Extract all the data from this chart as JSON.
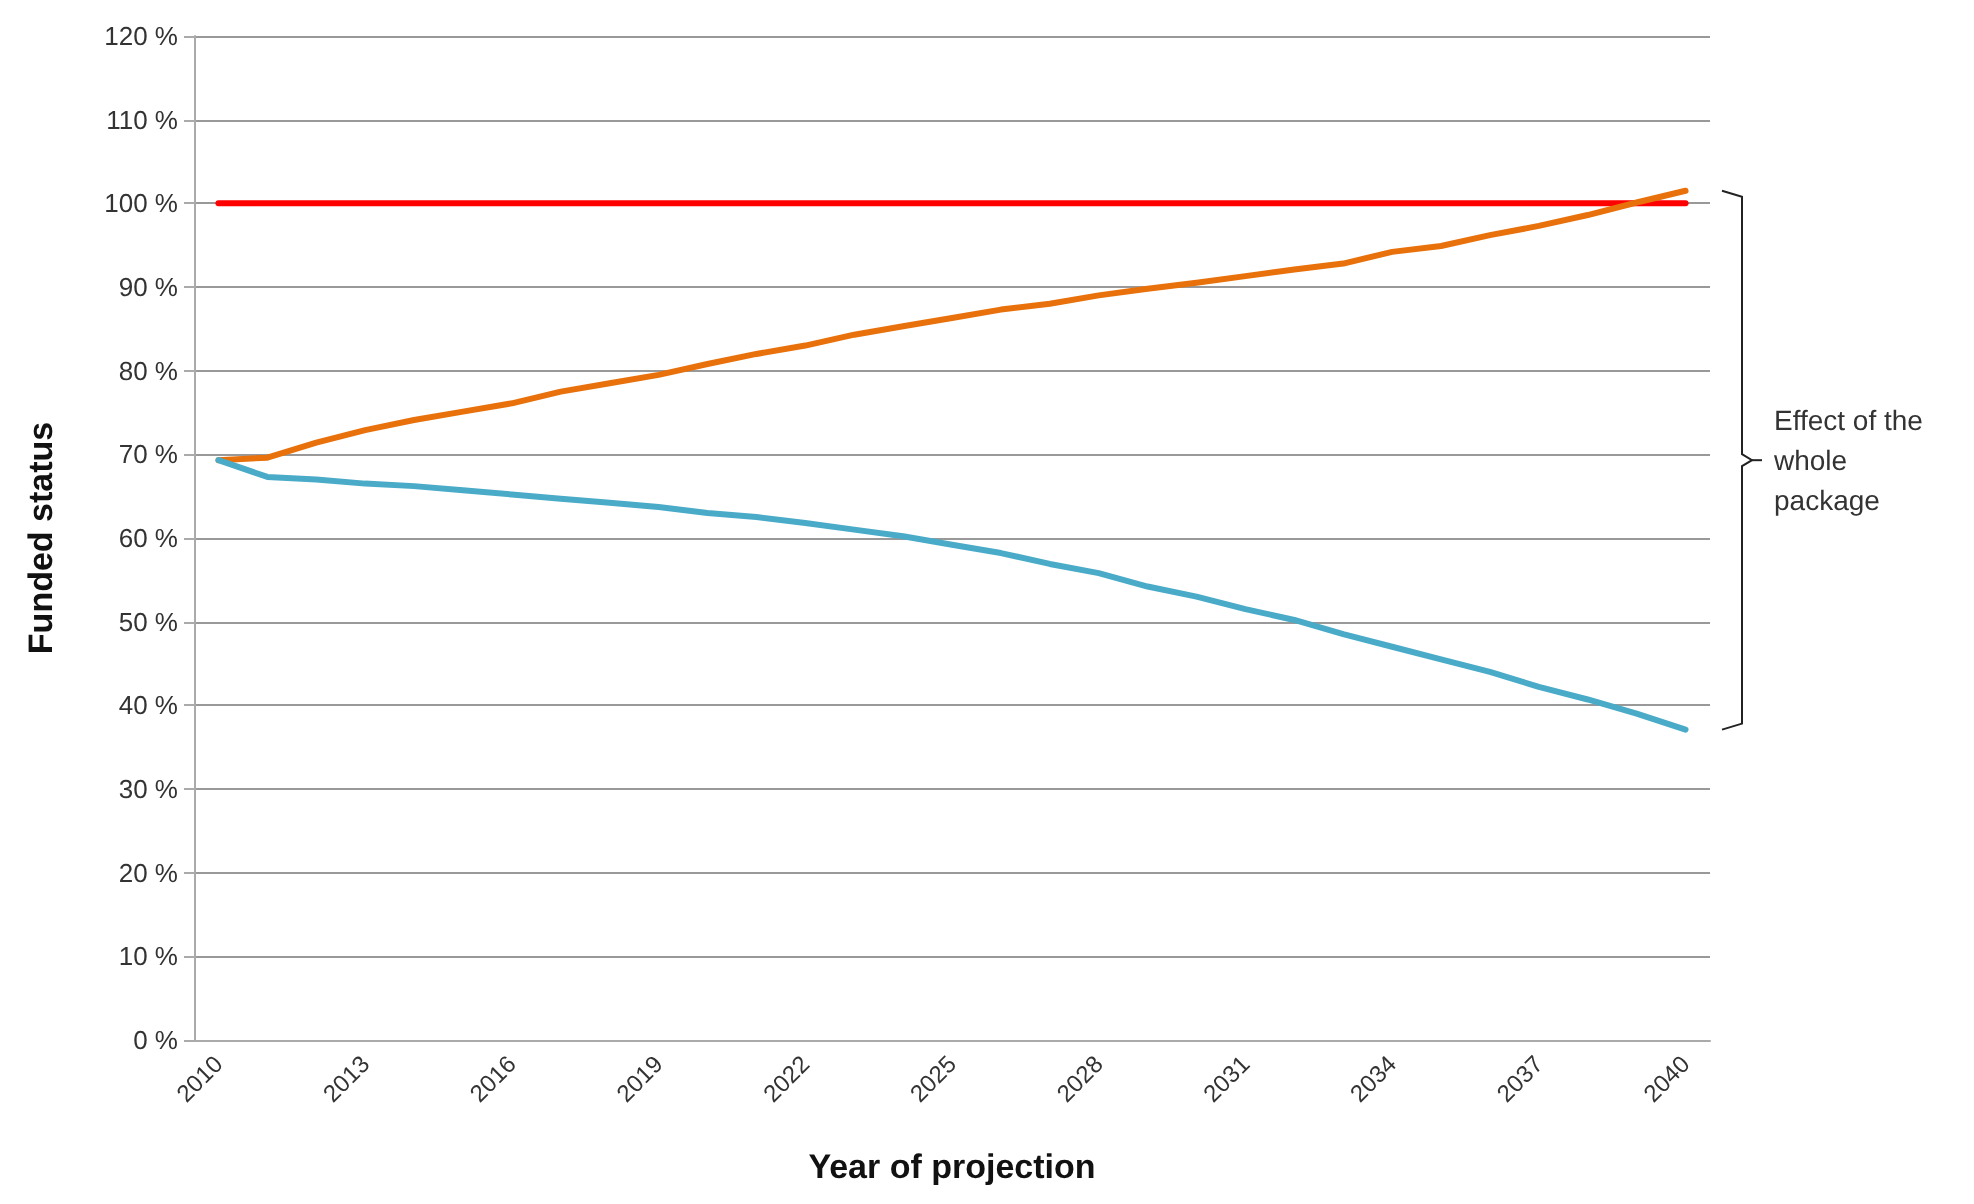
{
  "chart_data": {
    "type": "line",
    "xlabel": "Year of projection",
    "ylabel": "Funded status",
    "categories": [
      "2010",
      null,
      null,
      "2013",
      null,
      null,
      "2016",
      null,
      null,
      "2019",
      null,
      null,
      "2022",
      null,
      null,
      "2025",
      null,
      null,
      "2028",
      null,
      null,
      "2031",
      null,
      null,
      "2034",
      null,
      null,
      "2037",
      null,
      null,
      "2040"
    ],
    "series": [
      {
        "color": "#ff0000",
        "values": [
          100,
          100,
          100,
          100,
          100,
          100,
          100,
          100,
          100,
          100,
          100,
          100,
          100,
          100,
          100,
          100,
          100,
          100,
          100,
          100,
          100,
          100,
          100,
          100,
          100,
          100,
          100,
          100,
          100,
          100,
          100
        ]
      },
      {
        "color": "#e8710c",
        "values": [
          69.3,
          69.6,
          71.4,
          72.9,
          74.1,
          75.1,
          76.1,
          77.5,
          78.5,
          79.5,
          80.8,
          82.0,
          83.0,
          84.3,
          85.3,
          86.3,
          87.3,
          88.0,
          89.0,
          89.8,
          90.5,
          91.3,
          92.1,
          92.8,
          94.2,
          94.9,
          96.2,
          97.3,
          98.6,
          100.1,
          101.5
        ]
      },
      {
        "color": "#4aabc8",
        "values": [
          69.3,
          67.3,
          67.0,
          66.5,
          66.2,
          65.7,
          65.2,
          64.7,
          64.2,
          63.7,
          63.0,
          62.5,
          61.8,
          61.0,
          60.2,
          59.2,
          58.2,
          56.9,
          55.8,
          54.2,
          53.0,
          51.5,
          50.2,
          48.5,
          47.0,
          45.5,
          44.0,
          42.2,
          40.7,
          39.0,
          37.1
        ]
      }
    ],
    "ylim": [
      0,
      120
    ],
    "yticks": [
      {
        "value": 0,
        "label": "0 %"
      },
      {
        "value": 10,
        "label": "10 %"
      },
      {
        "value": 20,
        "label": "20 %"
      },
      {
        "value": 30,
        "label": "30 %"
      },
      {
        "value": 40,
        "label": "40 %"
      },
      {
        "value": 50,
        "label": "50 %"
      },
      {
        "value": 60,
        "label": "60 %"
      },
      {
        "value": 70,
        "label": "70 %"
      },
      {
        "value": 80,
        "label": "80 %"
      },
      {
        "value": 90,
        "label": "90 %"
      },
      {
        "value": 100,
        "label": "100 %"
      },
      {
        "value": 110,
        "label": "110 %"
      },
      {
        "value": 120,
        "label": "120 %"
      }
    ],
    "grid": "y",
    "marker": "none",
    "line_style": "solid",
    "annotations": [
      "Effect of the whole package"
    ]
  }
}
